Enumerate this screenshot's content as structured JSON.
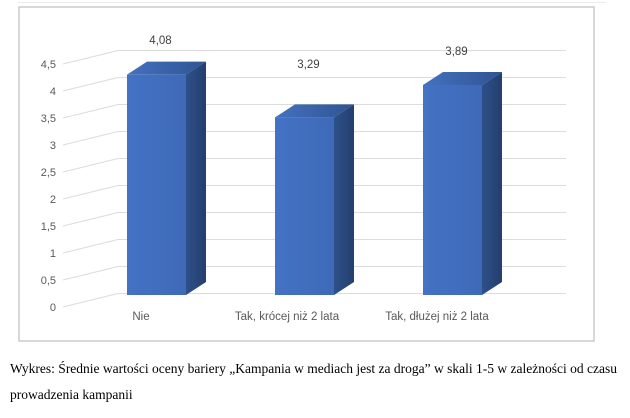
{
  "figure": {
    "caption": "Wykres: Średnie wartości oceny bariery „Kampania w mediach jest za droga” w skali 1-5 w zależności od czasu prowadzenia kampanii"
  },
  "chart_data": {
    "type": "bar",
    "variant": "3d-column",
    "title": "",
    "xlabel": "",
    "ylabel": "",
    "categories": [
      "Nie",
      "Tak, krócej niż 2 lata",
      "Tak, dłużej niż 2 lata"
    ],
    "values": [
      4.08,
      3.29,
      3.89
    ],
    "value_labels": [
      "4,08",
      "3,29",
      "3,89"
    ],
    "ylim": [
      0,
      4.5
    ],
    "ytick_step": 0.5,
    "ytick_labels": [
      "0",
      "0,5",
      "1",
      "1,5",
      "2",
      "2,5",
      "3",
      "3,5",
      "4",
      "4,5"
    ],
    "grid": true,
    "legend": false,
    "colors": {
      "bar_front": "#4472C4",
      "bar_front_dark": "#3E6AB8",
      "bar_top_light": "#4571BE",
      "bar_top_dark": "#2F5492",
      "bar_side_light": "#2E5089",
      "bar_side_dark": "#243F6E",
      "gridline": "#DCDCDC",
      "frame_border": "#C8C8C8",
      "tick_text": "#595959",
      "category_text": "#595959",
      "value_text": "#404040"
    }
  }
}
